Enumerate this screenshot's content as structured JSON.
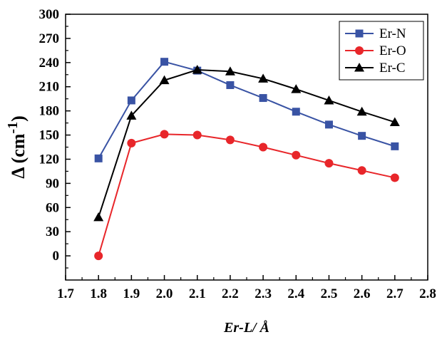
{
  "chart_data": {
    "type": "line",
    "title": "",
    "xlabel": "Er-L/ Å",
    "ylabel": "Δ (cm⁻¹)",
    "ylabel_main": "Δ (cm",
    "ylabel_sup": "-1",
    "ylabel_close": ")",
    "xlim": [
      1.7,
      2.8
    ],
    "ylim": [
      -30,
      300
    ],
    "x_ticks": [
      1.7,
      1.8,
      1.9,
      2.0,
      2.1,
      2.2,
      2.3,
      2.4,
      2.5,
      2.6,
      2.7,
      2.8
    ],
    "x_tick_labels": [
      "1.7",
      "1.8",
      "1.9",
      "2.0",
      "2.1",
      "2.2",
      "2.3",
      "2.4",
      "2.5",
      "2.6",
      "2.7",
      "2.8"
    ],
    "y_ticks": [
      0,
      30,
      60,
      90,
      120,
      150,
      180,
      210,
      240,
      270,
      300
    ],
    "y_tick_labels": [
      "0",
      "30",
      "60",
      "90",
      "120",
      "150",
      "180",
      "210",
      "240",
      "270",
      "300"
    ],
    "x": [
      1.8,
      1.9,
      2.0,
      2.1,
      2.2,
      2.3,
      2.4,
      2.5,
      2.6,
      2.7
    ],
    "grid": false,
    "legend_position": "top-right",
    "series": [
      {
        "name": "Er-N",
        "color": "#3953a4",
        "marker": "square",
        "values": [
          121,
          193,
          241,
          230,
          212,
          196,
          179,
          163,
          149,
          136
        ]
      },
      {
        "name": "Er-O",
        "color": "#e8262a",
        "marker": "circle",
        "values": [
          0,
          140,
          151,
          150,
          144,
          135,
          125,
          115,
          106,
          97
        ]
      },
      {
        "name": "Er-C",
        "color": "#000000",
        "marker": "triangle",
        "values": [
          48,
          174,
          218,
          231,
          229,
          220,
          207,
          193,
          179,
          166
        ]
      }
    ]
  }
}
